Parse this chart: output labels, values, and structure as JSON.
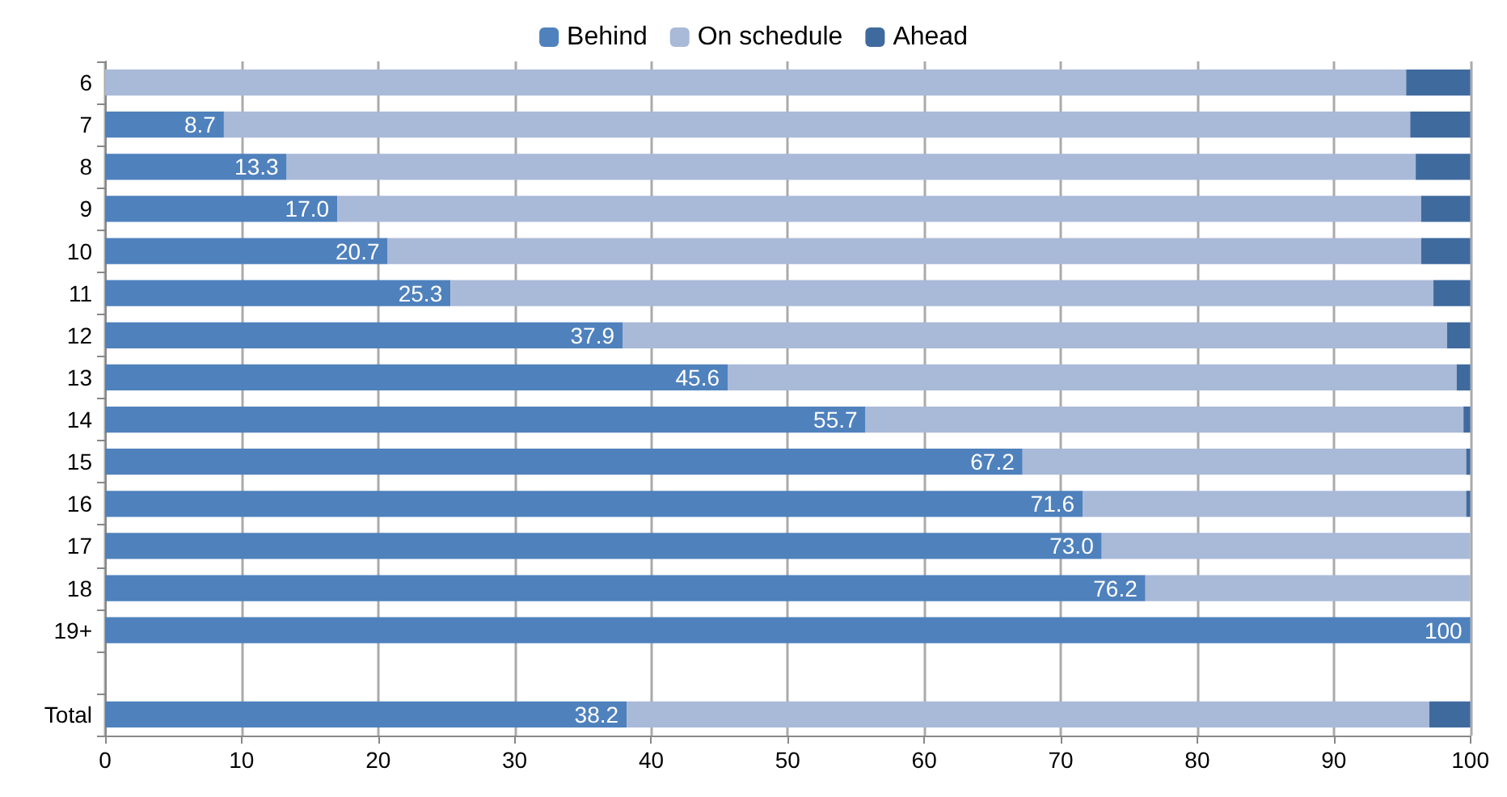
{
  "chart_data": {
    "type": "bar",
    "orientation": "horizontal",
    "stacked": true,
    "legend": "top",
    "grid": "x",
    "categories": [
      "6",
      "7",
      "8",
      "9",
      "10",
      "11",
      "12",
      "13",
      "14",
      "15",
      "16",
      "17",
      "18",
      "19+",
      null,
      "Total"
    ],
    "xlim": [
      0,
      100
    ],
    "xticks": [
      0,
      10,
      20,
      30,
      40,
      50,
      60,
      70,
      80,
      90,
      100
    ],
    "series": [
      {
        "name": "Behind",
        "color": "#4f81bd",
        "values": [
          0,
          8.7,
          13.3,
          17.0,
          20.7,
          25.3,
          37.9,
          45.6,
          55.7,
          67.2,
          71.6,
          73.0,
          76.2,
          100,
          null,
          38.2
        ],
        "value_labels": [
          null,
          "8.7",
          "13.3",
          "17.0",
          "20.7",
          "25.3",
          "37.9",
          "45.6",
          "55.7",
          "67.2",
          "71.6",
          "73.0",
          "76.2",
          "100",
          null,
          "38.2"
        ]
      },
      {
        "name": "On schedule",
        "color": "#a9b9d8",
        "values": [
          95.3,
          86.9,
          82.7,
          79.4,
          75.7,
          72.0,
          60.4,
          53.4,
          43.8,
          32.5,
          28.1,
          27.0,
          23.8,
          0,
          null,
          58.8
        ]
      },
      {
        "name": "Ahead",
        "color": "#3f6a9e",
        "values": [
          4.7,
          4.4,
          4.0,
          3.6,
          3.6,
          2.7,
          1.7,
          1.0,
          0.5,
          0.3,
          0.3,
          0,
          0,
          0,
          null,
          3.0
        ]
      }
    ]
  }
}
